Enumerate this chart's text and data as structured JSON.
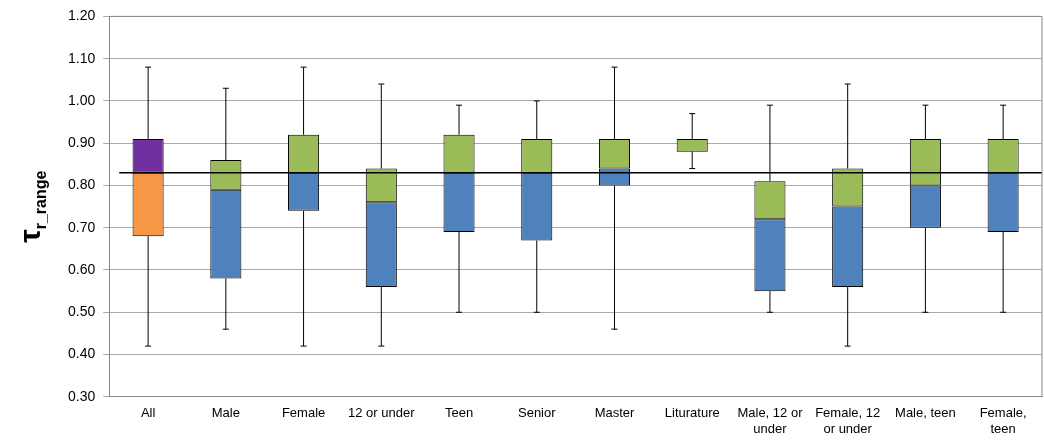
{
  "chart_data": {
    "type": "box",
    "ylabel": "τ$_{r_range}$",
    "categories": [
      "All",
      "Male",
      "Female",
      "12 or under",
      "Teen",
      "Senior",
      "Master",
      "Liturature",
      "Male, 12 or under",
      "Female, 12 or under",
      "Male, teen",
      "Female, teen"
    ],
    "boxes": [
      {
        "low": 0.42,
        "q1": 0.68,
        "median": 0.83,
        "q3": 0.91,
        "high": 1.08
      },
      {
        "low": 0.46,
        "q1": 0.58,
        "median": 0.79,
        "q3": 0.86,
        "high": 1.03
      },
      {
        "low": 0.42,
        "q1": 0.74,
        "median": 0.83,
        "q3": 0.92,
        "high": 1.08
      },
      {
        "low": 0.42,
        "q1": 0.56,
        "median": 0.76,
        "q3": 0.84,
        "high": 1.04
      },
      {
        "low": 0.5,
        "q1": 0.69,
        "median": 0.83,
        "q3": 0.92,
        "high": 0.99
      },
      {
        "low": 0.5,
        "q1": 0.67,
        "median": 0.83,
        "q3": 0.91,
        "high": 1.0
      },
      {
        "low": 0.46,
        "q1": 0.8,
        "median": 0.84,
        "q3": 0.91,
        "high": 1.08
      },
      {
        "low": 0.84,
        "q1": 0.88,
        "median": 0.88,
        "q3": 0.91,
        "high": 0.97
      },
      {
        "low": 0.5,
        "q1": 0.55,
        "median": 0.72,
        "q3": 0.81,
        "high": 0.99
      },
      {
        "low": 0.42,
        "q1": 0.56,
        "median": 0.75,
        "q3": 0.84,
        "high": 1.04
      },
      {
        "low": 0.5,
        "q1": 0.7,
        "median": 0.8,
        "q3": 0.91,
        "high": 0.99
      },
      {
        "low": 0.5,
        "q1": 0.69,
        "median": 0.83,
        "q3": 0.91,
        "high": 0.99
      }
    ],
    "colors": [
      [
        "#f79646",
        "#7030a0"
      ],
      [
        "#4f81bd",
        "#9bbb59"
      ],
      [
        "#4f81bd",
        "#9bbb59"
      ],
      [
        "#4f81bd",
        "#9bbb59"
      ],
      [
        "#4f81bd",
        "#9bbb59"
      ],
      [
        "#4f81bd",
        "#9bbb59"
      ],
      [
        "#4f81bd",
        "#9bbb59"
      ],
      [
        "#4f81bd",
        "#9bbb59"
      ],
      [
        "#4f81bd",
        "#9bbb59"
      ],
      [
        "#4f81bd",
        "#9bbb59"
      ],
      [
        "#4f81bd",
        "#9bbb59"
      ],
      [
        "#4f81bd",
        "#9bbb59"
      ]
    ],
    "ylim": [
      0.3,
      1.2
    ],
    "yticks": [
      {
        "value": 0.3,
        "label": "0.30"
      },
      {
        "value": 0.4,
        "label": "0.40"
      },
      {
        "value": 0.5,
        "label": "0.50"
      },
      {
        "value": 0.6,
        "label": "0.60"
      },
      {
        "value": 0.7,
        "label": "0.70"
      },
      {
        "value": 0.8,
        "label": "0.80"
      },
      {
        "value": 0.9,
        "label": "0.90"
      },
      {
        "value": 1.0,
        "label": "1.00"
      },
      {
        "value": 1.1,
        "label": "1.10"
      },
      {
        "value": 1.2,
        "label": "1.20"
      }
    ],
    "grid": "y",
    "legend": false,
    "ref_lines": [
      {
        "axis": "y",
        "value": 0.83,
        "color": "#000000"
      }
    ]
  }
}
